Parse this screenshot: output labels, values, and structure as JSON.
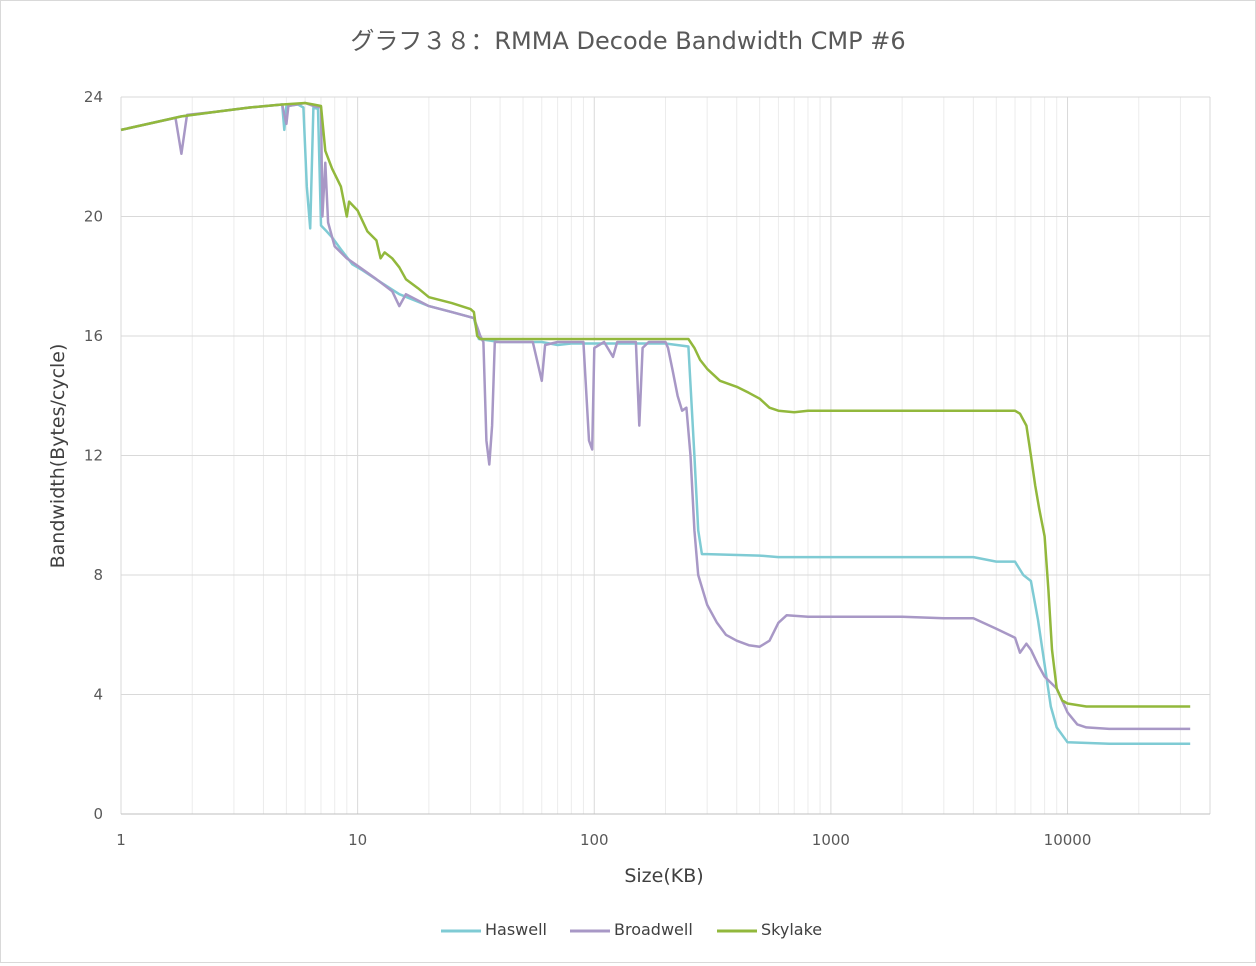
{
  "chart_data": {
    "type": "line",
    "title": "グラフ３８：RMMA Decode Bandwidth CMP #6",
    "xlabel": "Size(KB)",
    "ylabel": "Bandwidth(Bytes/cycle)",
    "x_scale": "log",
    "xlim": [
      1,
      40000
    ],
    "ylim": [
      0,
      24
    ],
    "x_ticks": [
      1,
      10,
      100,
      1000,
      10000
    ],
    "x_tick_labels": [
      "1",
      "10",
      "100",
      "1000",
      "10000"
    ],
    "y_ticks": [
      0,
      4,
      8,
      12,
      16,
      20,
      24
    ],
    "y_tick_labels": [
      "0",
      "4",
      "8",
      "12",
      "16",
      "20",
      "24"
    ],
    "grid": true,
    "legend_position": "bottom",
    "series": [
      {
        "name": "Haswell",
        "color": "#7fcbd4",
        "points": [
          [
            1,
            22.9
          ],
          [
            1.3,
            23.1
          ],
          [
            1.8,
            23.35
          ],
          [
            2.5,
            23.5
          ],
          [
            3.5,
            23.65
          ],
          [
            4.8,
            23.75
          ],
          [
            4.9,
            22.9
          ],
          [
            5.0,
            23.7
          ],
          [
            5.6,
            23.75
          ],
          [
            5.9,
            23.65
          ],
          [
            6.1,
            21.0
          ],
          [
            6.3,
            19.6
          ],
          [
            6.5,
            23.65
          ],
          [
            6.8,
            23.6
          ],
          [
            7.0,
            19.7
          ],
          [
            7.4,
            19.5
          ],
          [
            7.8,
            19.3
          ],
          [
            8.5,
            18.9
          ],
          [
            9.5,
            18.4
          ],
          [
            10.5,
            18.2
          ],
          [
            12.5,
            17.8
          ],
          [
            15,
            17.4
          ],
          [
            20,
            17.0
          ],
          [
            25,
            16.8
          ],
          [
            31,
            16.6
          ],
          [
            32.5,
            15.9
          ],
          [
            40,
            15.8
          ],
          [
            60,
            15.8
          ],
          [
            70,
            15.7
          ],
          [
            80,
            15.75
          ],
          [
            100,
            15.75
          ],
          [
            150,
            15.75
          ],
          [
            200,
            15.75
          ],
          [
            250,
            15.65
          ],
          [
            265,
            12.0
          ],
          [
            275,
            9.5
          ],
          [
            285,
            8.7
          ],
          [
            300,
            8.7
          ],
          [
            500,
            8.65
          ],
          [
            600,
            8.6
          ],
          [
            1000,
            8.6
          ],
          [
            3000,
            8.6
          ],
          [
            4000,
            8.6
          ],
          [
            5000,
            8.45
          ],
          [
            6000,
            8.45
          ],
          [
            6500,
            8.0
          ],
          [
            7000,
            7.8
          ],
          [
            7500,
            6.5
          ],
          [
            8000,
            5.0
          ],
          [
            8500,
            3.6
          ],
          [
            9000,
            2.9
          ],
          [
            10000,
            2.4
          ],
          [
            15000,
            2.35
          ],
          [
            20000,
            2.35
          ],
          [
            30000,
            2.35
          ],
          [
            33000,
            2.35
          ]
        ]
      },
      {
        "name": "Broadwell",
        "color": "#a898c6",
        "points": [
          [
            1,
            22.9
          ],
          [
            1.3,
            23.1
          ],
          [
            1.7,
            23.3
          ],
          [
            1.8,
            22.1
          ],
          [
            1.9,
            23.4
          ],
          [
            2.5,
            23.5
          ],
          [
            3.5,
            23.65
          ],
          [
            4.8,
            23.75
          ],
          [
            5.0,
            23.1
          ],
          [
            5.1,
            23.7
          ],
          [
            6.0,
            23.8
          ],
          [
            6.5,
            23.7
          ],
          [
            7.0,
            23.65
          ],
          [
            7.1,
            20.0
          ],
          [
            7.3,
            21.8
          ],
          [
            7.5,
            19.8
          ],
          [
            8,
            19.0
          ],
          [
            9,
            18.6
          ],
          [
            10,
            18.35
          ],
          [
            12,
            17.9
          ],
          [
            14,
            17.5
          ],
          [
            15,
            17.0
          ],
          [
            16,
            17.4
          ],
          [
            20,
            17.0
          ],
          [
            25,
            16.8
          ],
          [
            31,
            16.6
          ],
          [
            32,
            16.3
          ],
          [
            33,
            16.0
          ],
          [
            34,
            15.8
          ],
          [
            35,
            12.5
          ],
          [
            36,
            11.7
          ],
          [
            37,
            13.0
          ],
          [
            38,
            15.8
          ],
          [
            40,
            15.8
          ],
          [
            55,
            15.8
          ],
          [
            60,
            14.5
          ],
          [
            62,
            15.7
          ],
          [
            70,
            15.8
          ],
          [
            90,
            15.8
          ],
          [
            95,
            12.5
          ],
          [
            98,
            12.2
          ],
          [
            100,
            15.6
          ],
          [
            110,
            15.8
          ],
          [
            120,
            15.3
          ],
          [
            125,
            15.8
          ],
          [
            150,
            15.8
          ],
          [
            155,
            13.0
          ],
          [
            160,
            15.6
          ],
          [
            170,
            15.8
          ],
          [
            200,
            15.8
          ],
          [
            205,
            15.6
          ],
          [
            215,
            14.8
          ],
          [
            225,
            14.0
          ],
          [
            235,
            13.5
          ],
          [
            245,
            13.6
          ],
          [
            255,
            12.0
          ],
          [
            265,
            9.5
          ],
          [
            275,
            8.0
          ],
          [
            300,
            7.0
          ],
          [
            330,
            6.4
          ],
          [
            360,
            6.0
          ],
          [
            400,
            5.8
          ],
          [
            450,
            5.65
          ],
          [
            500,
            5.6
          ],
          [
            550,
            5.8
          ],
          [
            600,
            6.4
          ],
          [
            650,
            6.65
          ],
          [
            800,
            6.6
          ],
          [
            1000,
            6.6
          ],
          [
            2000,
            6.6
          ],
          [
            3000,
            6.55
          ],
          [
            4000,
            6.55
          ],
          [
            5000,
            6.2
          ],
          [
            6000,
            5.9
          ],
          [
            6300,
            5.4
          ],
          [
            6700,
            5.7
          ],
          [
            7000,
            5.5
          ],
          [
            7500,
            5.0
          ],
          [
            8000,
            4.6
          ],
          [
            9000,
            4.2
          ],
          [
            10000,
            3.4
          ],
          [
            11000,
            3.0
          ],
          [
            12000,
            2.9
          ],
          [
            15000,
            2.85
          ],
          [
            20000,
            2.85
          ],
          [
            30000,
            2.85
          ],
          [
            33000,
            2.85
          ]
        ]
      },
      {
        "name": "Skylake",
        "color": "#92b83c",
        "points": [
          [
            1,
            22.9
          ],
          [
            1.3,
            23.1
          ],
          [
            1.8,
            23.35
          ],
          [
            2.5,
            23.5
          ],
          [
            3.5,
            23.65
          ],
          [
            4.8,
            23.75
          ],
          [
            6.0,
            23.8
          ],
          [
            6.5,
            23.75
          ],
          [
            7.0,
            23.7
          ],
          [
            7.3,
            22.2
          ],
          [
            7.8,
            21.6
          ],
          [
            8.5,
            21.0
          ],
          [
            9.0,
            20.0
          ],
          [
            9.2,
            20.5
          ],
          [
            10,
            20.2
          ],
          [
            11,
            19.5
          ],
          [
            12,
            19.2
          ],
          [
            12.5,
            18.6
          ],
          [
            13,
            18.8
          ],
          [
            14,
            18.6
          ],
          [
            15,
            18.3
          ],
          [
            16,
            17.9
          ],
          [
            18,
            17.6
          ],
          [
            20,
            17.3
          ],
          [
            25,
            17.1
          ],
          [
            30,
            16.9
          ],
          [
            31,
            16.8
          ],
          [
            32,
            16.0
          ],
          [
            33,
            15.9
          ],
          [
            40,
            15.9
          ],
          [
            60,
            15.9
          ],
          [
            80,
            15.9
          ],
          [
            100,
            15.9
          ],
          [
            150,
            15.9
          ],
          [
            200,
            15.9
          ],
          [
            250,
            15.9
          ],
          [
            265,
            15.6
          ],
          [
            280,
            15.2
          ],
          [
            300,
            14.9
          ],
          [
            340,
            14.5
          ],
          [
            400,
            14.3
          ],
          [
            450,
            14.1
          ],
          [
            500,
            13.9
          ],
          [
            550,
            13.6
          ],
          [
            600,
            13.5
          ],
          [
            700,
            13.45
          ],
          [
            800,
            13.5
          ],
          [
            1000,
            13.5
          ],
          [
            2000,
            13.5
          ],
          [
            3000,
            13.5
          ],
          [
            4000,
            13.5
          ],
          [
            5000,
            13.5
          ],
          [
            6000,
            13.5
          ],
          [
            6300,
            13.4
          ],
          [
            6700,
            13.0
          ],
          [
            7000,
            12.0
          ],
          [
            7300,
            11.0
          ],
          [
            7600,
            10.2
          ],
          [
            8000,
            9.3
          ],
          [
            8300,
            7.5
          ],
          [
            8600,
            5.5
          ],
          [
            9000,
            4.2
          ],
          [
            9500,
            3.8
          ],
          [
            10000,
            3.7
          ],
          [
            12000,
            3.6
          ],
          [
            20000,
            3.6
          ],
          [
            30000,
            3.6
          ],
          [
            33000,
            3.6
          ]
        ]
      }
    ]
  }
}
